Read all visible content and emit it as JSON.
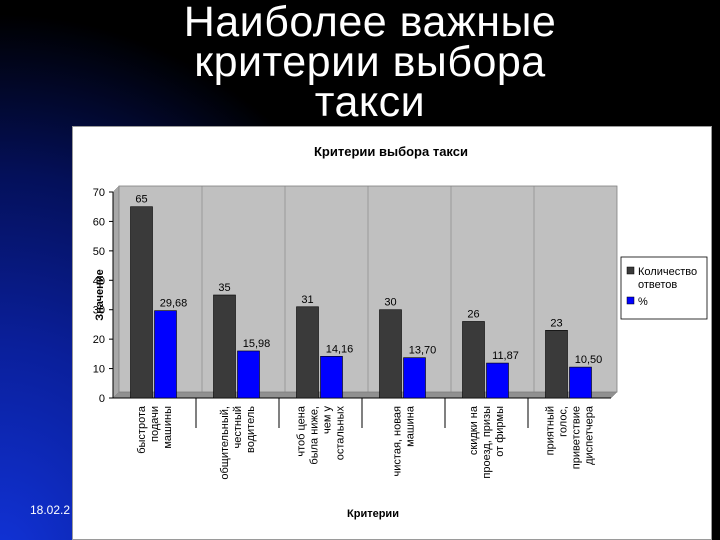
{
  "slide": {
    "title_lines": [
      "Наиболее важные",
      "критерии выбора",
      "такси"
    ],
    "date": "18.02.2"
  },
  "colors": {
    "count_series": "#3a3a3a",
    "percent_series": "#0000ff",
    "plot_area": "#c0c0c0",
    "slide_accent": "#1133d8"
  },
  "chart_data": {
    "type": "bar",
    "title": "Критерии выбора такси",
    "xlabel": "Критерии",
    "ylabel": "Значение",
    "ylim": [
      0,
      70
    ],
    "yticks": [
      0,
      10,
      20,
      30,
      40,
      50,
      60,
      70
    ],
    "grid": false,
    "legend_position": "right",
    "categories": [
      [
        "быстрота",
        "подачи",
        "машины"
      ],
      [
        "общительный,",
        "честный",
        "водитель"
      ],
      [
        "чтоб цена",
        "была ниже,",
        "чем у",
        "остальных"
      ],
      [
        "чистая, новая",
        "машина"
      ],
      [
        "скидки на",
        "проезд, призы",
        "от фирмы"
      ],
      [
        "приятный",
        "голос,",
        "приветствие",
        "диспетчера"
      ]
    ],
    "series": [
      {
        "name": "Количество ответов",
        "legend_lines": [
          "Количество",
          "ответов"
        ],
        "values": [
          65,
          35,
          31,
          30,
          26,
          23
        ],
        "labels": [
          "65",
          "35",
          "31",
          "30",
          "26",
          "23"
        ]
      },
      {
        "name": "%",
        "legend_lines": [
          "%"
        ],
        "values": [
          29.68,
          15.98,
          14.16,
          13.7,
          11.87,
          10.5
        ],
        "labels": [
          "29,68",
          "15,98",
          "14,16",
          "13,70",
          "11,87",
          "10,50"
        ]
      }
    ]
  }
}
